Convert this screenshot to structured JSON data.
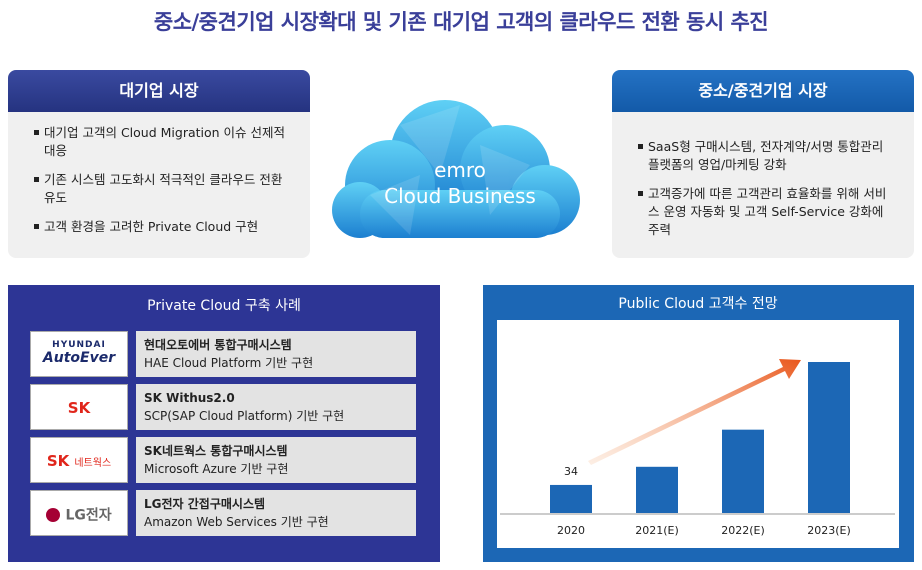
{
  "title": "중소/중견기업 시장확대 및 기존 대기업 고객의 클라우드 전환 동시 추진",
  "left_panel": {
    "title": "대기업 시장",
    "bullets": [
      "대기업 고객의 Cloud Migration 이슈 선제적 대응",
      "기존 시스템 고도화시 적극적인 클라우드 전환 유도",
      "고객 환경을 고려한 Private Cloud 구현"
    ]
  },
  "cloud": {
    "line1": "emro",
    "line2": "Cloud Business"
  },
  "right_panel": {
    "title": "중소/중견기업 시장",
    "bullets": [
      "SaaS형 구매시스템, 전자계약/서명 통합관리 플랫폼의 영업/마케팅 강화",
      "고객증가에 따른 고객관리 효율화를 위해 서비스 운영 자동화 및 고객 Self-Service 강화에 주력"
    ]
  },
  "cases": {
    "title": "Private Cloud 구축 사례",
    "rows": [
      {
        "logo": "HYUNDAI",
        "logo_sub": "AutoEver",
        "name": "현대오토에버 통합구매시스템",
        "desc": "HAE Cloud Platform 기반 구현"
      },
      {
        "logo": "SK",
        "name": "SK Withus2.0",
        "desc": "SCP(SAP Cloud Platform) 기반 구현"
      },
      {
        "logo": "SK",
        "logo_sub": "네트웍스",
        "name": "SK네트웍스 통합구매시스템",
        "desc": "Microsoft Azure 기반 구현"
      },
      {
        "logo": "LG전자",
        "name": "LG전자 간접구매시스템",
        "desc": "Amazon Web Services 기반 구현"
      }
    ]
  },
  "chart_data": {
    "type": "bar",
    "title": "Public Cloud 고객수 전망",
    "categories": [
      "2020",
      "2021(E)",
      "2022(E)",
      "2023(E)"
    ],
    "values": [
      34,
      56,
      101,
      183
    ],
    "color": "#1c67b5"
  }
}
